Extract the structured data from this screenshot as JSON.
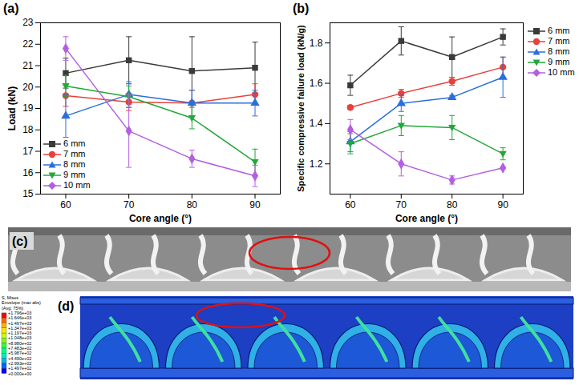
{
  "chart_data": [
    {
      "type": "line",
      "title": "(a)",
      "x_label": "Core angle (°)",
      "y_label": "Load (kN)",
      "x": [
        60,
        70,
        80,
        90
      ],
      "xlim": [
        56,
        94
      ],
      "xticks": [
        60,
        70,
        80,
        90
      ],
      "ylim": [
        15,
        23
      ],
      "yticks": [
        15,
        16,
        17,
        18,
        19,
        20,
        21,
        22,
        23
      ],
      "legend": "lower left",
      "grid": false,
      "series": [
        {
          "name": "6 mm",
          "color": "#3a3a3a",
          "marker": "square",
          "values": [
            20.65,
            21.25,
            20.75,
            20.9
          ],
          "errors": [
            0.7,
            1.1,
            1.6,
            1.2
          ]
        },
        {
          "name": "7 mm",
          "color": "#e8413b",
          "marker": "circle",
          "values": [
            19.6,
            19.3,
            19.25,
            19.65
          ],
          "errors": [
            0.5,
            0.4,
            0.6,
            0.5
          ]
        },
        {
          "name": "8 mm",
          "color": "#2a6fdb",
          "marker": "triangle-up",
          "values": [
            18.65,
            19.65,
            19.25,
            19.25
          ],
          "errors": [
            1.0,
            0.6,
            0.6,
            0.6
          ]
        },
        {
          "name": "9 mm",
          "color": "#22a83a",
          "marker": "triangle-down",
          "values": [
            20.05,
            19.55,
            18.55,
            16.5
          ],
          "errors": [
            0.5,
            0.5,
            0.5,
            0.6
          ]
        },
        {
          "name": "10 mm",
          "color": "#b45ee0",
          "marker": "diamond",
          "values": [
            21.8,
            17.95,
            16.65,
            15.85
          ],
          "errors": [
            0.55,
            1.7,
            0.4,
            0.5
          ]
        }
      ]
    },
    {
      "type": "line",
      "title": "(b)",
      "x_label": "Core angle (°)",
      "y_label": "Specific compressive failure load (kN/g)",
      "x": [
        60,
        70,
        80,
        90
      ],
      "xlim": [
        56,
        94
      ],
      "xticks": [
        60,
        70,
        80,
        90
      ],
      "ylim": [
        1.05,
        1.9
      ],
      "yticks": [
        1.2,
        1.4,
        1.6,
        1.8
      ],
      "legend": "right",
      "grid": false,
      "series": [
        {
          "name": "6 mm",
          "color": "#3a3a3a",
          "marker": "square",
          "values": [
            1.59,
            1.81,
            1.73,
            1.83
          ],
          "errors": [
            0.05,
            0.07,
            0.1,
            0.04
          ]
        },
        {
          "name": "7 mm",
          "color": "#e8413b",
          "marker": "circle",
          "values": [
            1.48,
            1.55,
            1.61,
            1.68
          ],
          "errors": [
            0.01,
            0.02,
            0.02,
            0.05
          ]
        },
        {
          "name": "8 mm",
          "color": "#2a6fdb",
          "marker": "triangle-up",
          "values": [
            1.31,
            1.5,
            1.53,
            1.63
          ],
          "errors": [
            0.05,
            0.04,
            0.01,
            0.1
          ]
        },
        {
          "name": "9 mm",
          "color": "#22a83a",
          "marker": "triangle-down",
          "values": [
            1.3,
            1.39,
            1.38,
            1.25
          ],
          "errors": [
            0.05,
            0.05,
            0.06,
            0.03
          ]
        },
        {
          "name": "10 mm",
          "color": "#b45ee0",
          "marker": "diamond",
          "values": [
            1.37,
            1.2,
            1.12,
            1.18
          ],
          "errors": [
            0.05,
            0.06,
            0.02,
            0.005
          ]
        }
      ]
    }
  ],
  "images": [
    {
      "title": "(c)"
    },
    {
      "title": "(d)",
      "colorbar": {
        "title": [
          "S, Mises",
          "Envelope (max abs)",
          "(Avg: 75%)"
        ],
        "ticks": [
          {
            "value": 1796,
            "label": "+1.796e+03"
          },
          {
            "value": 1646,
            "label": "+1.646e+03"
          },
          {
            "value": 1497,
            "label": "+1.497e+03"
          },
          {
            "value": 1347,
            "label": "+1.347e+03"
          },
          {
            "value": 1197,
            "label": "+1.197e+03"
          },
          {
            "value": 1048,
            "label": "+1.048e+03"
          },
          {
            "value": 898,
            "label": "+8.980e+02"
          },
          {
            "value": 748.3,
            "label": "+7.483e+02"
          },
          {
            "value": 598.7,
            "label": "+5.987e+02"
          },
          {
            "value": 449,
            "label": "+4.490e+02"
          },
          {
            "value": 299.3,
            "label": "+2.993e+02"
          },
          {
            "value": 149.7,
            "label": "+1.497e+02"
          },
          {
            "value": 0,
            "label": "+0.000e+00"
          }
        ]
      }
    }
  ]
}
